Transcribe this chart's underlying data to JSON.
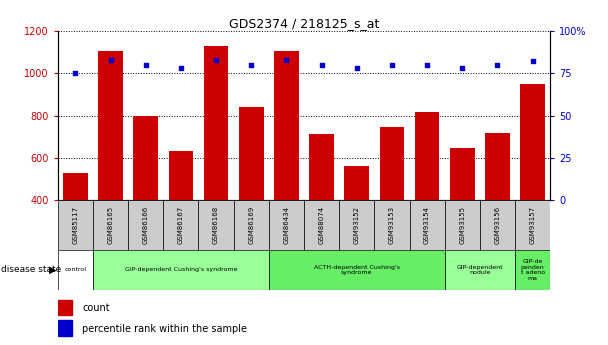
{
  "title": "GDS2374 / 218125_s_at",
  "samples": [
    "GSM85117",
    "GSM86165",
    "GSM86166",
    "GSM86167",
    "GSM86168",
    "GSM86169",
    "GSM86434",
    "GSM88074",
    "GSM93152",
    "GSM93153",
    "GSM93154",
    "GSM93155",
    "GSM93156",
    "GSM93157"
  ],
  "counts": [
    527,
    1107,
    800,
    632,
    1128,
    840,
    1105,
    715,
    560,
    748,
    815,
    648,
    718,
    950
  ],
  "percentile_ranks": [
    75,
    83,
    80,
    78,
    83,
    80,
    83,
    80,
    78,
    80,
    80,
    78,
    80,
    82
  ],
  "ylim_left": [
    400,
    1200
  ],
  "ylim_right": [
    0,
    100
  ],
  "yticks_left": [
    400,
    600,
    800,
    1000,
    1200
  ],
  "yticks_right": [
    0,
    25,
    50,
    75,
    100
  ],
  "bar_color": "#cc0000",
  "dot_color": "#0000cc",
  "tick_area_color": "#cccccc",
  "disease_groups": [
    {
      "label": "control",
      "start": 0,
      "end": 1,
      "color": "#ffffff"
    },
    {
      "label": "GIP-dependent Cushing's syndrome",
      "start": 1,
      "end": 6,
      "color": "#99ff99"
    },
    {
      "label": "ACTH-dependent Cushing's\nsyndrome",
      "start": 6,
      "end": 11,
      "color": "#66ee66"
    },
    {
      "label": "GIP-dependent\nnodule",
      "start": 11,
      "end": 13,
      "color": "#99ff99"
    },
    {
      "label": "GIP-de\npenden\nt adeno\nma",
      "start": 13,
      "end": 14,
      "color": "#66ee66"
    }
  ],
  "right_axis_label_color": "#0000cc",
  "left_axis_label_color": "#cc0000"
}
